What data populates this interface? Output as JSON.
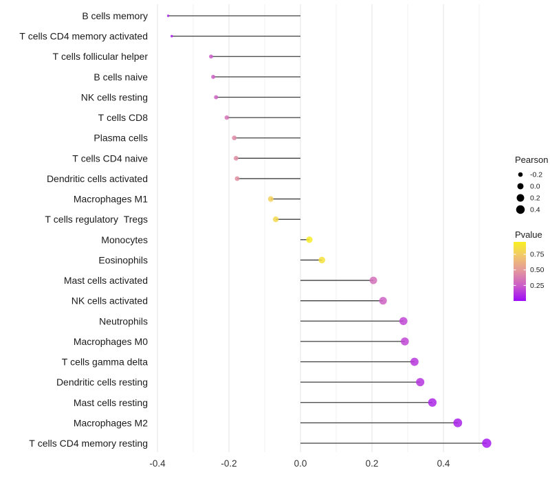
{
  "chart_data": {
    "type": "scatter",
    "variant": "lollipop",
    "title": "",
    "xlabel": "",
    "ylabel": "",
    "x_axis": {
      "ticks": [
        -0.4,
        -0.2,
        0.0,
        0.2,
        0.4
      ],
      "tick_labels": [
        "-0.4",
        "-0.2",
        "0.0",
        "0.2",
        "0.4"
      ],
      "minor_ticks": [
        -0.3,
        -0.1,
        0.1,
        0.3,
        0.5
      ],
      "lim": [
        -0.42,
        0.6
      ]
    },
    "rows": [
      {
        "label": "B cells memory",
        "pearson": -0.37,
        "pvalue": 0.07
      },
      {
        "label": "T cells CD4 memory activated",
        "pearson": -0.36,
        "pvalue": 0.08
      },
      {
        "label": "T cells follicular helper",
        "pearson": -0.25,
        "pvalue": 0.24
      },
      {
        "label": "B cells naive",
        "pearson": -0.244,
        "pvalue": 0.26
      },
      {
        "label": "NK cells resting",
        "pearson": -0.236,
        "pvalue": 0.28
      },
      {
        "label": "T cells CD8",
        "pearson": -0.206,
        "pvalue": 0.35
      },
      {
        "label": "Plasma cells",
        "pearson": -0.185,
        "pvalue": 0.44
      },
      {
        "label": "T cells CD4 naive",
        "pearson": -0.18,
        "pvalue": 0.45
      },
      {
        "label": "Dendritic cells activated",
        "pearson": -0.177,
        "pvalue": 0.46
      },
      {
        "label": "Macrophages M1",
        "pearson": -0.083,
        "pvalue": 0.78
      },
      {
        "label": "T cells regulatory  Tregs",
        "pearson": -0.069,
        "pvalue": 0.82
      },
      {
        "label": "Monocytes",
        "pearson": 0.025,
        "pvalue": 0.93
      },
      {
        "label": "Eosinophils",
        "pearson": 0.06,
        "pvalue": 0.87
      },
      {
        "label": "Mast cells activated",
        "pearson": 0.204,
        "pvalue": 0.33
      },
      {
        "label": "NK cells activated",
        "pearson": 0.231,
        "pvalue": 0.27
      },
      {
        "label": "Neutrophils",
        "pearson": 0.288,
        "pvalue": 0.18
      },
      {
        "label": "Macrophages M0",
        "pearson": 0.292,
        "pvalue": 0.18
      },
      {
        "label": "T cells gamma delta",
        "pearson": 0.319,
        "pvalue": 0.14
      },
      {
        "label": "Dendritic cells resting",
        "pearson": 0.335,
        "pvalue": 0.13
      },
      {
        "label": "Mast cells resting",
        "pearson": 0.369,
        "pvalue": 0.09
      },
      {
        "label": "Macrophages M2",
        "pearson": 0.44,
        "pvalue": 0.07
      },
      {
        "label": "T cells CD4 memory resting",
        "pearson": 0.521,
        "pvalue": 0.05
      }
    ],
    "legend": {
      "size": {
        "title": "Pearson",
        "entries": [
          {
            "label": "-0.2",
            "value": -0.2
          },
          {
            "label": "0.0",
            "value": 0.0
          },
          {
            "label": "0.2",
            "value": 0.2
          },
          {
            "label": "0.4",
            "value": 0.4
          }
        ],
        "dot_color": "#000000"
      },
      "color": {
        "title": "Pvalue",
        "ticks": [
          {
            "label": "0.75",
            "value": 0.75
          },
          {
            "label": "0.50",
            "value": 0.5
          },
          {
            "label": "0.25",
            "value": 0.25
          }
        ],
        "domain": [
          0.0,
          0.95
        ],
        "gradient_stops": [
          {
            "value": 0.0,
            "color": "#9C0AF8"
          },
          {
            "value": 0.25,
            "color": "#CC5DC8"
          },
          {
            "value": 0.5,
            "color": "#E59A9B"
          },
          {
            "value": 0.75,
            "color": "#F2CC66"
          },
          {
            "value": 0.95,
            "color": "#F8F021"
          }
        ]
      }
    },
    "style": {
      "background": "#FFFFFF",
      "grid_major": "#E3E3E3",
      "grid_minor": "#F0F0F0",
      "stem_color": "#3D3D3D",
      "axis_text_color": "#333333",
      "label_text_color": "#1A1A1A",
      "legend_text_color": "#1A1A1A",
      "point_opacity": 0.85,
      "size_domain": [
        -0.37,
        0.52
      ],
      "point_radius_range": [
        1.7,
        6.7
      ]
    }
  }
}
